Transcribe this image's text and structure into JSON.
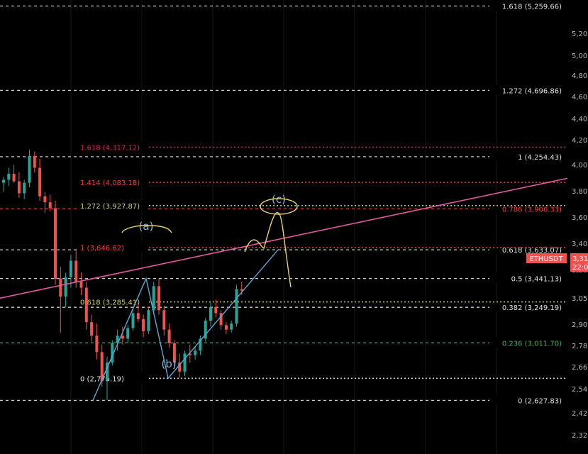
{
  "chart_data": {
    "type": "candlestick",
    "symbol": "ETHUSDT",
    "last_price_label": "3,31",
    "countdown_label": "22:0",
    "colors": {
      "background": "#000000",
      "up": "#26a69a",
      "down": "#ef5350",
      "fib_main": "#e0e0e0",
      "fib_green": "#4caf50",
      "fib_pink": "#e91e63",
      "fib_red": "#f44336",
      "fib_yellow": "#d4d45a",
      "trendline": "#e05aa0",
      "wave": "#5fa8d3",
      "projection": "#e6d36a"
    },
    "ylim": [
      2270,
      5300
    ],
    "y_ticks": [
      "5,20",
      "5,00",
      "4,80",
      "4,60",
      "4,40",
      "4,20",
      "4,00",
      "3,80",
      "3,60",
      "3,40",
      "3,20",
      "3,05",
      "2,90",
      "2,78",
      "2,66",
      "2,54",
      "2,42",
      "2,32"
    ],
    "fib_main": [
      {
        "label": "1.618 (5,259.66)",
        "value": 5259.66,
        "color": "#e0e0e0"
      },
      {
        "label": "1.272 (4,696.86)",
        "value": 4696.86,
        "color": "#e0e0e0"
      },
      {
        "label": "1 (4,254.43)",
        "value": 4254.43,
        "color": "#e0e0e0"
      },
      {
        "label": "0.786 (3,906.33)",
        "value": 3906.33,
        "color": "#f44336"
      },
      {
        "label": "0.618 (3,633.07)",
        "value": 3633.07,
        "color": "#e0e0e0"
      },
      {
        "label": "0.5 (3,441.13)",
        "value": 3441.13,
        "color": "#e0e0e0"
      },
      {
        "label": "0.382 (3,249.19)",
        "value": 3249.19,
        "color": "#e0e0e0"
      },
      {
        "label": "0.236 (3,011.70)",
        "value": 3011.7,
        "color": "#4caf50"
      },
      {
        "label": "0 (2,627.83)",
        "value": 2627.83,
        "color": "#e0e0e0"
      }
    ],
    "fib_ext": [
      {
        "label": "1.618 (4,317.12)",
        "value": 4317.12,
        "color": "#e91e63"
      },
      {
        "label": "1.414 (4,083.18)",
        "value": 4083.18,
        "color": "#f44336"
      },
      {
        "label": "1.272 (3,927.87)",
        "value": 3927.87,
        "color": "#d4d45a"
      },
      {
        "label": "1 (3,646.62)",
        "value": 3646.62,
        "color": "#f44336"
      },
      {
        "label": "0.618 (3,285.41)",
        "value": 3285.41,
        "color": "#d4d45a"
      },
      {
        "label": "0 (2,775.19)",
        "value": 2775.19,
        "color": "#e0e0e0"
      }
    ],
    "wave_labels": [
      "(a)",
      "(b)",
      "(c)"
    ],
    "candles": [
      [
        4080,
        4120,
        4020,
        4100
      ],
      [
        4100,
        4180,
        4060,
        4140
      ],
      [
        4140,
        4200,
        4080,
        4090
      ],
      [
        4090,
        4150,
        3980,
        4010
      ],
      [
        4010,
        4100,
        3970,
        4080
      ],
      [
        4080,
        4300,
        4050,
        4260
      ],
      [
        4260,
        4290,
        4150,
        4180
      ],
      [
        4180,
        4240,
        3960,
        3990
      ],
      [
        3990,
        4020,
        3880,
        3950
      ],
      [
        3950,
        4000,
        3890,
        3910
      ],
      [
        3910,
        3960,
        3400,
        3440
      ],
      [
        3440,
        3520,
        3080,
        3320
      ],
      [
        3320,
        3480,
        3250,
        3450
      ],
      [
        3450,
        3600,
        3380,
        3560
      ],
      [
        3560,
        3640,
        3380,
        3420
      ],
      [
        3420,
        3480,
        3330,
        3380
      ],
      [
        3380,
        3420,
        3100,
        3150
      ],
      [
        3150,
        3200,
        3020,
        3060
      ],
      [
        3060,
        3140,
        2900,
        2950
      ],
      [
        2950,
        3000,
        2720,
        2760
      ],
      [
        2760,
        2920,
        2630,
        2880
      ],
      [
        2880,
        3030,
        2860,
        3010
      ],
      [
        3010,
        3100,
        2960,
        3060
      ],
      [
        3060,
        3120,
        3000,
        3040
      ],
      [
        3040,
        3130,
        3010,
        3110
      ],
      [
        3110,
        3240,
        3090,
        3210
      ],
      [
        3210,
        3280,
        3150,
        3170
      ],
      [
        3170,
        3200,
        3050,
        3090
      ],
      [
        3090,
        3250,
        3070,
        3230
      ],
      [
        3230,
        3420,
        3200,
        3390
      ],
      [
        3390,
        3440,
        3200,
        3230
      ],
      [
        3230,
        3260,
        3060,
        3100
      ],
      [
        3100,
        3140,
        2980,
        3010
      ],
      [
        3010,
        3030,
        2840,
        2880
      ],
      [
        2880,
        2940,
        2780,
        2820
      ],
      [
        2820,
        2960,
        2790,
        2940
      ],
      [
        2940,
        3000,
        2880,
        2930
      ],
      [
        2930,
        2990,
        2900,
        2960
      ],
      [
        2960,
        3060,
        2930,
        3040
      ],
      [
        3040,
        3180,
        3020,
        3160
      ],
      [
        3160,
        3280,
        3120,
        3250
      ],
      [
        3250,
        3300,
        3180,
        3210
      ],
      [
        3210,
        3230,
        3100,
        3130
      ],
      [
        3130,
        3150,
        3070,
        3100
      ],
      [
        3100,
        3160,
        3080,
        3140
      ],
      [
        3140,
        3400,
        3120,
        3370
      ],
      [
        3370,
        3420,
        3330,
        3360
      ]
    ]
  }
}
